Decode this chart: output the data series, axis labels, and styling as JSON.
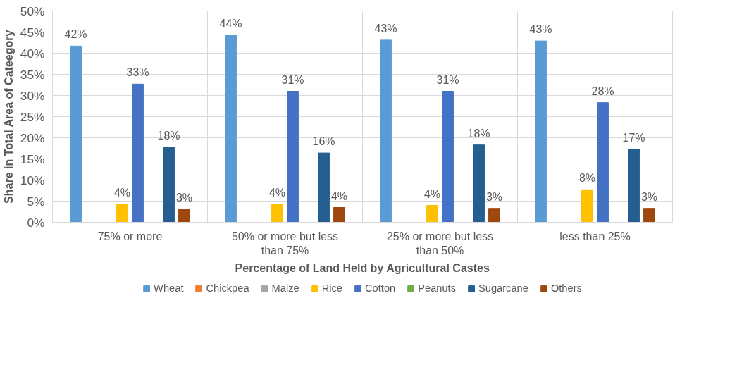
{
  "chart_data": {
    "type": "bar",
    "xlabel": "Percentage of Land Held by Agricultural Castes",
    "ylabel": "Share in Total Area of Cateegory",
    "categories": [
      "75% or more",
      "50% or more but less than 75%",
      "25% or more but less than 50%",
      "less than 25%"
    ],
    "series": [
      {
        "name": "Wheat",
        "color": "#5b9bd5",
        "values": [
          41.7,
          44.3,
          43.1,
          42.9
        ],
        "value_labels": [
          "42%",
          "44%",
          "43%",
          "43%"
        ]
      },
      {
        "name": "Chickpea",
        "color": "#ed7d31",
        "values": [
          null,
          null,
          null,
          null
        ]
      },
      {
        "name": "Maize",
        "color": "#a5a5a5",
        "values": [
          null,
          null,
          null,
          null
        ]
      },
      {
        "name": "Rice",
        "color": "#ffc000",
        "values": [
          4.3,
          4.3,
          4.0,
          7.7
        ],
        "value_labels": [
          "4%",
          "4%",
          "4%",
          "8%"
        ]
      },
      {
        "name": "Cotton",
        "color": "#4472c4",
        "values": [
          32.7,
          31.0,
          31.0,
          28.3
        ],
        "value_labels": [
          "33%",
          "31%",
          "31%",
          "28%"
        ]
      },
      {
        "name": "Peanuts",
        "color": "#70ad47",
        "values": [
          null,
          null,
          null,
          null
        ]
      },
      {
        "name": "Sugarcane",
        "color": "#255e91",
        "values": [
          17.8,
          16.4,
          18.3,
          17.3
        ],
        "value_labels": [
          "18%",
          "16%",
          "18%",
          "17%"
        ]
      },
      {
        "name": "Others",
        "color": "#9e480e",
        "values": [
          3.1,
          3.5,
          3.3,
          3.3
        ],
        "value_labels": [
          "3%",
          "4%",
          "3%",
          "3%"
        ]
      }
    ],
    "ylim": [
      0,
      50
    ],
    "yticks": [
      {
        "value": 0,
        "label": "0%"
      },
      {
        "value": 5,
        "label": "5%"
      },
      {
        "value": 10,
        "label": "10%"
      },
      {
        "value": 15,
        "label": "15%"
      },
      {
        "value": 20,
        "label": "20%"
      },
      {
        "value": 25,
        "label": "25%"
      },
      {
        "value": 30,
        "label": "30%"
      },
      {
        "value": 35,
        "label": "35%"
      },
      {
        "value": 40,
        "label": "40%"
      },
      {
        "value": 45,
        "label": "45%"
      },
      {
        "value": 50,
        "label": "50%"
      }
    ],
    "grid": true,
    "legend": "bottom"
  }
}
